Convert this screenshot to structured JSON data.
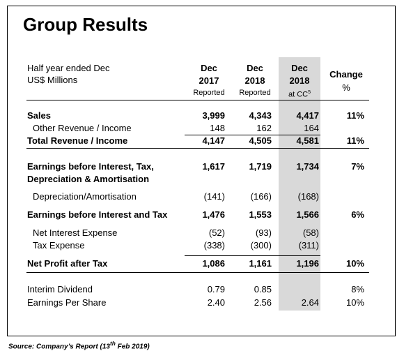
{
  "title": "Group Results",
  "header": {
    "label_lines": [
      "Half year ended Dec",
      "US$ Millions"
    ],
    "columns": [
      {
        "lines": [
          "Dec",
          "2017",
          "Reported"
        ]
      },
      {
        "lines": [
          "Dec",
          "2018",
          "Reported"
        ]
      },
      {
        "lines": [
          "Dec",
          "2018",
          "at CC"
        ],
        "sup": "5"
      },
      {
        "lines": [
          "Change",
          "%"
        ]
      }
    ]
  },
  "rows": [
    {
      "label": [
        "Sales"
      ],
      "bold": true,
      "indent": false,
      "cells": [
        "3,999",
        "4,343",
        "4,417",
        "11%"
      ]
    },
    {
      "label": [
        "Other Revenue / Income"
      ],
      "bold": false,
      "indent": true,
      "cells": [
        "148",
        "162",
        "164",
        null
      ]
    },
    {
      "label": [
        "Total Revenue / Income"
      ],
      "bold": true,
      "indent": false,
      "cells": [
        "4,147",
        "4,505",
        "4,581",
        "11%"
      ]
    },
    {
      "label": [
        "Earnings before Interest, Tax,",
        "Depreciation & Amortisation"
      ],
      "bold": true,
      "indent": false,
      "cells": [
        "1,617",
        "1,719",
        "1,734",
        "7%"
      ]
    },
    {
      "label": [
        "Depreciation/Amortisation"
      ],
      "bold": false,
      "indent": true,
      "cells": [
        "(141)",
        "(166)",
        "(168)",
        null
      ]
    },
    {
      "label": [
        "Earnings before Interest and Tax"
      ],
      "bold": true,
      "indent": false,
      "cells": [
        "1,476",
        "1,553",
        "1,566",
        "6%"
      ]
    },
    {
      "label": [
        "Net Interest Expense"
      ],
      "bold": false,
      "indent": true,
      "cells": [
        "(52)",
        "(93)",
        "(58)",
        null
      ]
    },
    {
      "label": [
        "Tax Expense"
      ],
      "bold": false,
      "indent": true,
      "cells": [
        "(338)",
        "(300)",
        "(311)",
        null
      ]
    },
    {
      "label": [
        "Net Profit after Tax"
      ],
      "bold": true,
      "indent": false,
      "cells": [
        "1,086",
        "1,161",
        "1,196",
        "10%"
      ]
    },
    {
      "label": [
        "Interim Dividend"
      ],
      "bold": false,
      "indent": false,
      "cells": [
        "0.79",
        "0.85",
        null,
        "8%"
      ]
    },
    {
      "label": [
        "Earnings Per Share"
      ],
      "bold": false,
      "indent": false,
      "cells": [
        "2.40",
        "2.56",
        "2.64",
        "10%"
      ]
    }
  ],
  "source": {
    "before": "Source: Company’s Report (13",
    "sup": "th",
    "after": " Feb 2019)"
  }
}
